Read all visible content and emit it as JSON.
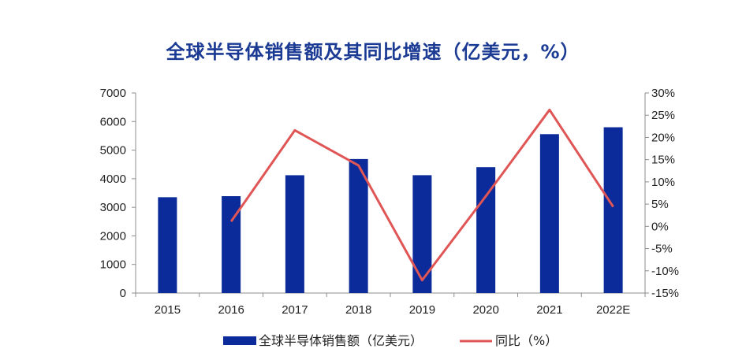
{
  "chart_data": {
    "type": "bar",
    "title": "全球半导体销售额及其同比增速（亿美元，%）",
    "categories": [
      "2015",
      "2016",
      "2017",
      "2018",
      "2019",
      "2020",
      "2021",
      "2022E"
    ],
    "series": [
      {
        "name": "全球半导体销售额（亿美元）",
        "type": "bar",
        "axis": "left",
        "color": "#0a2b99",
        "values": [
          3352,
          3389,
          4122,
          4688,
          4123,
          4404,
          5559,
          5800
        ]
      },
      {
        "name": "同比（%）",
        "type": "line",
        "axis": "right",
        "color": "#e05555",
        "values": [
          null,
          1.1,
          21.6,
          13.7,
          -12.1,
          6.8,
          26.2,
          4.4
        ]
      }
    ],
    "ylim_left": [
      0,
      7000
    ],
    "yticks_left": [
      "0",
      "1000",
      "2000",
      "3000",
      "4000",
      "5000",
      "6000",
      "7000"
    ],
    "ylim_right": [
      -15,
      30
    ],
    "yticks_right": [
      "-15%",
      "-10%",
      "-5%",
      "0%",
      "5%",
      "10%",
      "15%",
      "20%",
      "25%",
      "30%"
    ],
    "grid": false,
    "legend_position": "bottom"
  }
}
